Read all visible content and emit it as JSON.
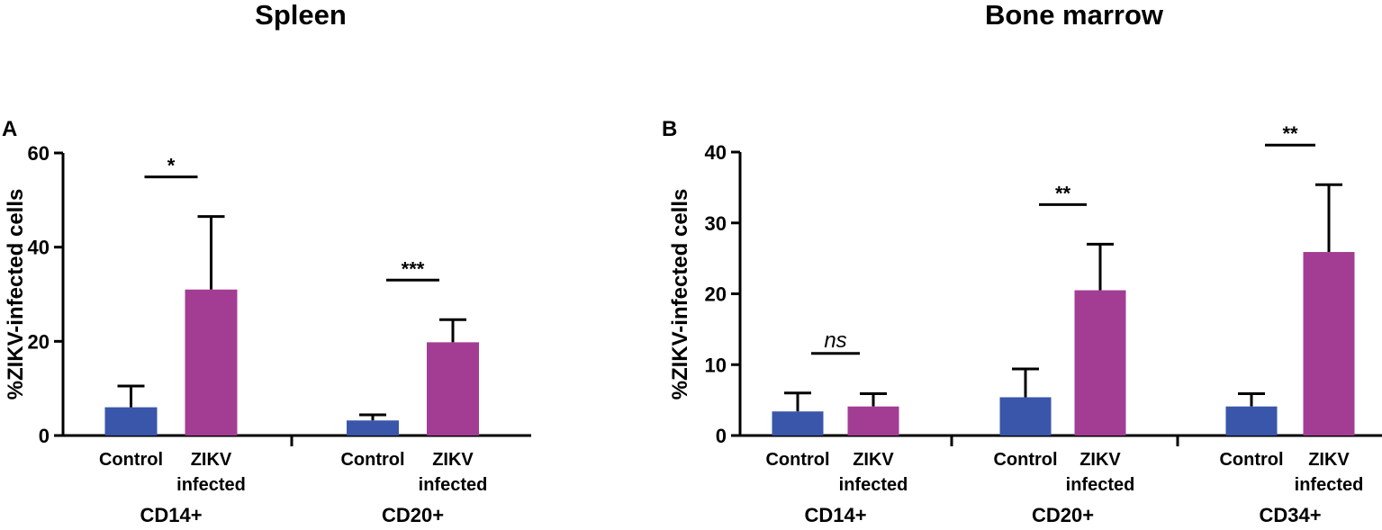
{
  "colors": {
    "control": "#3a56aa",
    "zikv": "#a33d94",
    "axis": "#000000"
  },
  "chart_data": [
    {
      "type": "bar",
      "panel": "A",
      "title": "Spleen",
      "ylabel": "%ZIKV-infected cells",
      "ylim": [
        0,
        60
      ],
      "yticks": [
        0,
        20,
        40,
        60
      ],
      "bar_labels": [
        "Control",
        "ZIKV infected"
      ],
      "groups": [
        {
          "name": "CD14+",
          "bars": [
            {
              "label": "Control",
              "value": 6,
              "error": 4.5
            },
            {
              "label": "ZIKV infected",
              "value": 31,
              "error": 15.5
            }
          ],
          "significance": "*"
        },
        {
          "name": "CD20+",
          "bars": [
            {
              "label": "Control",
              "value": 3.2,
              "error": 1.2
            },
            {
              "label": "ZIKV infected",
              "value": 19.8,
              "error": 4.8
            }
          ],
          "significance": "***"
        }
      ]
    },
    {
      "type": "bar",
      "panel": "B",
      "title": "Bone marrow",
      "ylabel": "%ZIKV-infected cells",
      "ylim": [
        0,
        40
      ],
      "yticks": [
        0,
        10,
        20,
        30,
        40
      ],
      "bar_labels": [
        "Control",
        "ZIKV infected"
      ],
      "groups": [
        {
          "name": "CD14+",
          "bars": [
            {
              "label": "Control",
              "value": 3.4,
              "error": 2.6
            },
            {
              "label": "ZIKV infected",
              "value": 4.1,
              "error": 1.8
            }
          ],
          "significance": "ns"
        },
        {
          "name": "CD20+",
          "bars": [
            {
              "label": "Control",
              "value": 5.4,
              "error": 4.0
            },
            {
              "label": "ZIKV infected",
              "value": 20.5,
              "error": 6.5
            }
          ],
          "significance": "**"
        },
        {
          "name": "CD34+",
          "bars": [
            {
              "label": "Control",
              "value": 4.1,
              "error": 1.8
            },
            {
              "label": "ZIKV infected",
              "value": 25.9,
              "error": 9.5
            }
          ],
          "significance": "**"
        }
      ]
    }
  ]
}
